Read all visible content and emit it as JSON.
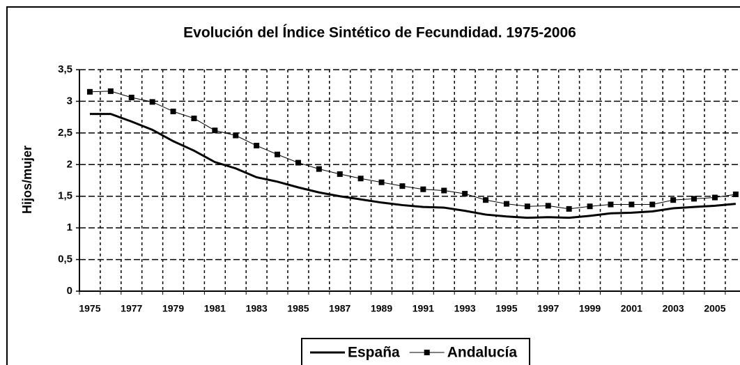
{
  "chart_data": {
    "type": "line",
    "title": "Evolución del Índice Sintético de Fecundidad. 1975-2006",
    "y_label": "Hijos/mujer",
    "categories": [
      "1975",
      null,
      "1977",
      null,
      "1979",
      null,
      "1981",
      null,
      "1983",
      null,
      "1985",
      null,
      "1987",
      null,
      "1989",
      null,
      "1991",
      null,
      "1993",
      null,
      "1995",
      null,
      "1997",
      null,
      "1999",
      null,
      "2001",
      null,
      "2003",
      null,
      "2005",
      null
    ],
    "series": [
      {
        "name": "España",
        "color": "#000000",
        "marker": false,
        "values": [
          2.8,
          2.8,
          2.68,
          2.55,
          2.37,
          2.22,
          2.04,
          1.94,
          1.8,
          1.73,
          1.64,
          1.56,
          1.5,
          1.45,
          1.4,
          1.36,
          1.33,
          1.32,
          1.27,
          1.21,
          1.18,
          1.16,
          1.17,
          1.16,
          1.19,
          1.23,
          1.24,
          1.26,
          1.31,
          1.33,
          1.35,
          1.38
        ]
      },
      {
        "name": "Andalucía",
        "color": "#000000",
        "marker": true,
        "values": [
          3.15,
          3.16,
          3.06,
          2.99,
          2.84,
          2.73,
          2.54,
          2.46,
          2.3,
          2.16,
          2.03,
          1.93,
          1.85,
          1.78,
          1.72,
          1.66,
          1.61,
          1.59,
          1.54,
          1.44,
          1.38,
          1.34,
          1.35,
          1.3,
          1.34,
          1.37,
          1.37,
          1.37,
          1.44,
          1.46,
          1.48,
          1.53
        ]
      }
    ],
    "ylim": [
      0,
      3.5
    ],
    "yticks": [
      0,
      {
        "value": 0.5,
        "label": "0,5"
      },
      1,
      {
        "value": 1.5,
        "label": "1,5"
      },
      2,
      {
        "value": 2.5,
        "label": "2,5"
      },
      3,
      {
        "value": 3.5,
        "label": "3,5"
      }
    ],
    "grid": true,
    "legend": "bottom"
  }
}
